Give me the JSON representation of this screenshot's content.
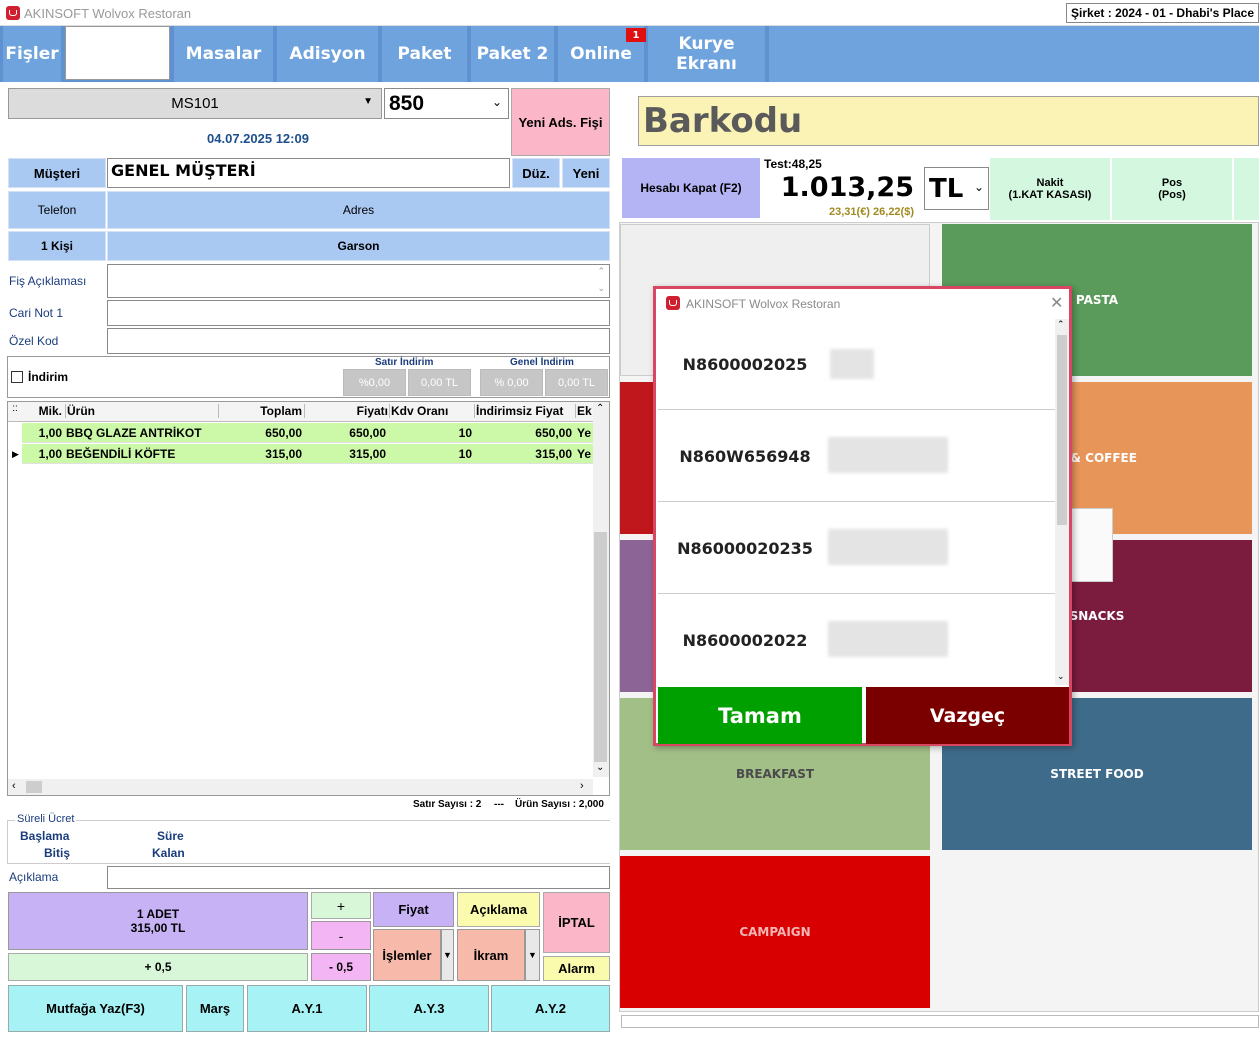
{
  "window": {
    "title": "AKINSOFT Wolvox Restoran",
    "company": "Şirket : 2024 - 01 - Dhabi's Place"
  },
  "nav": {
    "fisler": "Fişler",
    "masalar": "Masalar",
    "adisyon": "Adisyon",
    "paket": "Paket",
    "paket2": "Paket 2",
    "online": "Online",
    "online_badge": "1",
    "kurye": "Kurye Ekranı"
  },
  "order": {
    "table": "MS101",
    "number": "850",
    "datetime": "04.07.2025 12:09",
    "new_receipt": "Yeni Ads. Fişi",
    "customer_label": "Müşteri",
    "customer": "GENEL MÜŞTERİ",
    "edit": "Düz.",
    "new": "Yeni",
    "phone": "Telefon",
    "address": "Adres",
    "persons": "1 Kişi",
    "waiter": "Garson",
    "receipt_note": "Fiş Açıklaması",
    "cari_note": "Cari Not 1",
    "special_code": "Özel Kod",
    "discount": "İndirim",
    "line_discount": "Satır İndirim",
    "total_discount": "Genel İndirim",
    "pct1": "%0,00",
    "amt1": "0,00 TL",
    "pct2": "% 0,00",
    "amt2": "0,00 TL"
  },
  "grid": {
    "columns": [
      "Mik.",
      "Ürün",
      "Toplam",
      "Fiyatı",
      "Kdv Oranı",
      "İndirimsiz Fiyat",
      "Ek"
    ],
    "rows": [
      {
        "qty": "1,00",
        "product": "BBQ GLAZE ANTRİKOT",
        "total": "650,00",
        "price": "650,00",
        "vat": "10",
        "undiscounted": "650,00",
        "ek": "Ye"
      },
      {
        "qty": "1,00",
        "product": "BEĞENDİLİ KÖFTE",
        "total": "315,00",
        "price": "315,00",
        "vat": "10",
        "undiscounted": "315,00",
        "ek": "Ye"
      }
    ],
    "line_count": "Satır Sayısı : 2",
    "separator": "---",
    "product_count": "Ürün Sayısı : 2,000"
  },
  "timed": {
    "title": "Süreli Ücret",
    "start": "Başlama",
    "end": "Bitiş",
    "duration": "Süre",
    "remaining": "Kalan",
    "desc": "Açıklama"
  },
  "actions": {
    "qty_line1": "1 ADET",
    "qty_line2": "315,00 TL",
    "plus": "+",
    "minus": "-",
    "plus_half": "+ 0,5",
    "minus_half": "- 0,5",
    "price": "Fiyat",
    "description": "Açıklama",
    "cancel": "İPTAL",
    "operations": "İşlemler",
    "treat": "İkram",
    "alarm": "Alarm",
    "kitchen": "Mutfağa Yaz(F3)",
    "mars": "Marş",
    "ay1": "A.Y.1",
    "ay3": "A.Y.3",
    "ay2": "A.Y.2"
  },
  "payment": {
    "barcode": "Barkodu",
    "close": "Hesabı Kapat (F2)",
    "test": "Test:48,25",
    "total": "1.013,25",
    "currency": "TL",
    "fx": "23,31(€) 26,22($)",
    "cash1": "Nakit",
    "cash2": "(1.KAT KASASI)",
    "pos1": "Pos",
    "pos2": "(Pos)"
  },
  "categories": {
    "pasta": "PASTA",
    "coffee": "A & COFFEE",
    "snacks": "SNACKS",
    "breakfast": "BREAKFAST",
    "street": "STREET FOOD",
    "campaign": "CAMPAIGN"
  },
  "dialog": {
    "title": "AKINSOFT Wolvox Restoran",
    "items": [
      "N8600002025",
      "N860W656948",
      "N86000020235",
      "N8600002022"
    ],
    "ok": "Tamam",
    "cancel": "Vazgeç"
  },
  "colors": {
    "nav": "#6fa3de",
    "pasta": "#5a9a5a",
    "coffee": "#e8955a",
    "snacks": "#7b1c3e",
    "breakfast": "#a3bf88",
    "street": "#3f6b8a",
    "campaign": "#d80000",
    "ok": "#00a000",
    "cancel": "#7a0000"
  }
}
